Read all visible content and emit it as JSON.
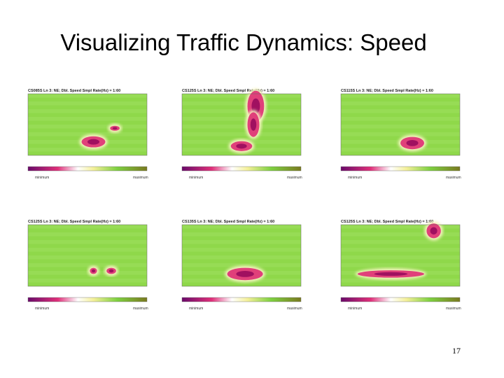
{
  "slide": {
    "title": "Visualizing Traffic Dynamics: Speed",
    "page_number": "17",
    "panels": [
      {
        "title": "CS085S Ln 3: NE; Dbl. Speed Smpl Rate(Hz) = 1:60",
        "legend_min": "minimum",
        "legend_max": "maximum"
      },
      {
        "title": "CS125S Ln 3: NE; Dbl. Speed Smpl Rate(Hz) = 1:60",
        "legend_min": "minimum",
        "legend_max": "maximum"
      },
      {
        "title": "CS115S Ln 3: NE; Dbl. Speed Smpl Rate(Hz) = 1:60",
        "legend_min": "minimum",
        "legend_max": "maximum"
      },
      {
        "title": "CS125S Ln 3: NE; Dbl. Speed Smpl Rate(Hz) = 1:60",
        "legend_min": "minimum",
        "legend_max": "maximum"
      },
      {
        "title": "CS135S Ln 3: NE; Dbl. Speed Smpl Rate(Hz) = 1:60",
        "legend_min": "minimum",
        "legend_max": "maximum"
      },
      {
        "title": "CS125S Ln 3: NE; Dbl. Speed Smpl Rate(Hz) = 1:60",
        "legend_min": "minimum",
        "legend_max": "maximum"
      }
    ]
  }
}
